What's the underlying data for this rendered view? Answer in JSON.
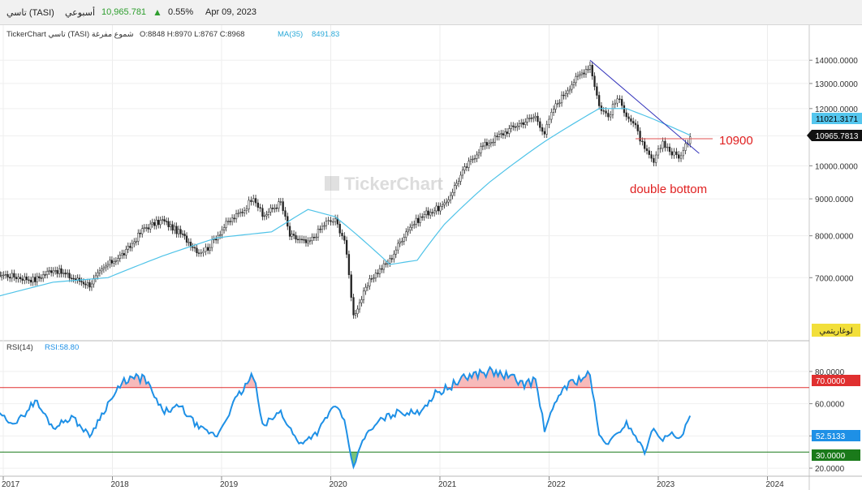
{
  "header": {
    "symbol": "تاسي (TASI)",
    "market": "أسبوعي",
    "last_price": "10,965.781",
    "change_pct": "0.55%",
    "date": "Apr 09, 2023"
  },
  "info_line": {
    "title": "TickerChart تاسي (TASI) شموع مفرغة",
    "ohlc": "O:8848 H:8970 L:8767 C:8968",
    "ma_label": "MA(35)",
    "ma_value": "8491.83"
  },
  "watermark": "TickerChart",
  "log_button": "لوغاريتمي",
  "colors": {
    "candle": "#222222",
    "ma": "#4fc3e8",
    "trendline": "#3333bb",
    "support": "#e05050",
    "rsi": "#1e90e6",
    "ob_line": "#e03030",
    "os_line": "#1a7a1a",
    "ob_fill": "#f4a3a3",
    "os_fill": "#4caf50",
    "up": "#2e9e2e",
    "annotation": "#e02020"
  },
  "chart_data": [
    {
      "type": "candlestick",
      "scale": "log",
      "x_ticks": [
        "2017",
        "2018",
        "2019",
        "2020",
        "2021",
        "2022",
        "2023",
        "2024"
      ],
      "y_ticks": [
        "14000.0000",
        "13000.0000",
        "12000.0000",
        "11000.0000",
        "10000.0000",
        "9000.0000",
        "8000.0000",
        "7000.0000"
      ],
      "ylim": [
        5800,
        14600
      ],
      "price_tags": {
        "ma": "11021.3171",
        "last": "10965.7813"
      },
      "annotations": {
        "level": "10900",
        "pattern": "double bottom"
      },
      "series": [
        {
          "name": "TASI",
          "points": [
            [
              "2016-11",
              7100
            ],
            [
              "2017-01",
              7050
            ],
            [
              "2017-04",
              6950
            ],
            [
              "2017-06",
              7200
            ],
            [
              "2017-08",
              7000
            ],
            [
              "2017-10",
              6850
            ],
            [
              "2017-12",
              7300
            ],
            [
              "2018-02",
              7600
            ],
            [
              "2018-04",
              8200
            ],
            [
              "2018-06",
              8400
            ],
            [
              "2018-08",
              8050
            ],
            [
              "2018-10",
              7600
            ],
            [
              "2018-11",
              7700
            ],
            [
              "2019-01",
              8300
            ],
            [
              "2019-03",
              8700
            ],
            [
              "2019-04",
              9100
            ],
            [
              "2019-05",
              8500
            ],
            [
              "2019-07",
              8900
            ],
            [
              "2019-08",
              8000
            ],
            [
              "2019-10",
              7800
            ],
            [
              "2019-12",
              8350
            ],
            [
              "2020-01",
              8400
            ],
            [
              "2020-02",
              7900
            ],
            [
              "2020-03",
              6200
            ],
            [
              "2020-05",
              7000
            ],
            [
              "2020-07",
              7400
            ],
            [
              "2020-09",
              8200
            ],
            [
              "2020-11",
              8600
            ],
            [
              "2021-01",
              8800
            ],
            [
              "2021-03",
              9800
            ],
            [
              "2021-05",
              10600
            ],
            [
              "2021-07",
              11000
            ],
            [
              "2021-09",
              11400
            ],
            [
              "2021-11",
              11700
            ],
            [
              "2021-12",
              11100
            ],
            [
              "2022-01",
              12000
            ],
            [
              "2022-03",
              13000
            ],
            [
              "2022-05",
              13800
            ],
            [
              "2022-06",
              12100
            ],
            [
              "2022-07",
              11700
            ],
            [
              "2022-08",
              12400
            ],
            [
              "2022-09",
              11800
            ],
            [
              "2022-10",
              11300
            ],
            [
              "2022-11",
              10500
            ],
            [
              "2022-12",
              10100
            ],
            [
              "2023-01",
              10800
            ],
            [
              "2023-02",
              10400
            ],
            [
              "2023-03",
              10300
            ],
            [
              "2023-04",
              10966
            ]
          ]
        },
        {
          "name": "MA(35)",
          "points": [
            [
              "2016-11",
              6550
            ],
            [
              "2017-06",
              6900
            ],
            [
              "2017-12",
              7000
            ],
            [
              "2018-06",
              7500
            ],
            [
              "2018-12",
              7950
            ],
            [
              "2019-06",
              8100
            ],
            [
              "2019-10",
              8700
            ],
            [
              "2020-01",
              8500
            ],
            [
              "2020-04",
              7900
            ],
            [
              "2020-07",
              7300
            ],
            [
              "2020-10",
              7400
            ],
            [
              "2021-01",
              8300
            ],
            [
              "2021-06",
              9500
            ],
            [
              "2021-12",
              10800
            ],
            [
              "2022-06",
              12000
            ],
            [
              "2022-09",
              12000
            ],
            [
              "2022-12",
              11600
            ],
            [
              "2023-04",
              11021
            ]
          ]
        }
      ]
    },
    {
      "type": "line",
      "title": "RSI(14)",
      "value_label": "RSI:58.80",
      "y_ticks": [
        "80.0000",
        "60.0000",
        "40.0000",
        "20.0000"
      ],
      "ylim": [
        15,
        90
      ],
      "levels": {
        "overbought": "70.0000",
        "oversold": "30.0000",
        "current": "52.5133"
      },
      "series": [
        {
          "name": "RSI",
          "points": [
            [
              "2016-11",
              55
            ],
            [
              "2017-02",
              48
            ],
            [
              "2017-04",
              62
            ],
            [
              "2017-06",
              45
            ],
            [
              "2017-08",
              52
            ],
            [
              "2017-10",
              40
            ],
            [
              "2017-12",
              60
            ],
            [
              "2018-02",
              75
            ],
            [
              "2018-04",
              76
            ],
            [
              "2018-06",
              55
            ],
            [
              "2018-08",
              58
            ],
            [
              "2018-10",
              45
            ],
            [
              "2018-12",
              40
            ],
            [
              "2019-02",
              62
            ],
            [
              "2019-04",
              78
            ],
            [
              "2019-05",
              46
            ],
            [
              "2019-07",
              55
            ],
            [
              "2019-09",
              35
            ],
            [
              "2019-11",
              42
            ],
            [
              "2020-01",
              60
            ],
            [
              "2020-02",
              48
            ],
            [
              "2020-03",
              20
            ],
            [
              "2020-04",
              38
            ],
            [
              "2020-06",
              50
            ],
            [
              "2020-08",
              55
            ],
            [
              "2020-10",
              54
            ],
            [
              "2020-12",
              66
            ],
            [
              "2021-02",
              72
            ],
            [
              "2021-04",
              78
            ],
            [
              "2021-06",
              80
            ],
            [
              "2021-08",
              77
            ],
            [
              "2021-10",
              72
            ],
            [
              "2021-11",
              75
            ],
            [
              "2021-12",
              44
            ],
            [
              "2022-02",
              70
            ],
            [
              "2022-04",
              76
            ],
            [
              "2022-05",
              78
            ],
            [
              "2022-06",
              40
            ],
            [
              "2022-07",
              35
            ],
            [
              "2022-09",
              48
            ],
            [
              "2022-10",
              40
            ],
            [
              "2022-11",
              30
            ],
            [
              "2022-12",
              45
            ],
            [
              "2023-01",
              38
            ],
            [
              "2023-02",
              41
            ],
            [
              "2023-03",
              38
            ],
            [
              "2023-04",
              52.5
            ]
          ]
        }
      ]
    }
  ]
}
